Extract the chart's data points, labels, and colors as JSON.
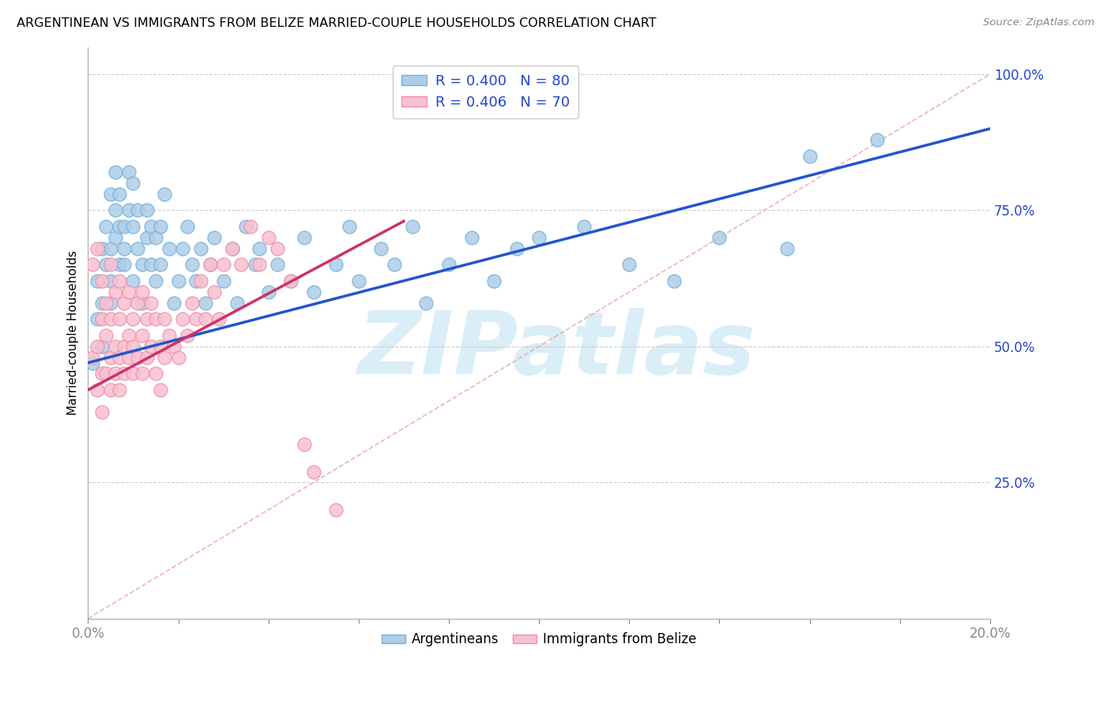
{
  "title": "ARGENTINEAN VS IMMIGRANTS FROM BELIZE MARRIED-COUPLE HOUSEHOLDS CORRELATION CHART",
  "source": "Source: ZipAtlas.com",
  "ylabel": "Married-couple Households",
  "ytick_labels": [
    "100.0%",
    "75.0%",
    "50.0%",
    "25.0%"
  ],
  "ytick_values": [
    1.0,
    0.75,
    0.5,
    0.25
  ],
  "legend_blue_r": "R = 0.400",
  "legend_blue_n": "N = 80",
  "legend_pink_r": "R = 0.406",
  "legend_pink_n": "N = 70",
  "legend_blue_label": "Argentineans",
  "legend_pink_label": "Immigrants from Belize",
  "blue_edge": "#7ab3d9",
  "blue_fill": "#aecde8",
  "pink_edge": "#f092aa",
  "pink_fill": "#f8c0d0",
  "line_blue": "#2255cc",
  "line_pink": "#cc3366",
  "line_diagonal_color": "#e8a0b0",
  "watermark": "ZIPatlas",
  "watermark_color": "#daeef8",
  "blue_scatter_x": [
    0.001,
    0.002,
    0.002,
    0.003,
    0.003,
    0.003,
    0.004,
    0.004,
    0.005,
    0.005,
    0.005,
    0.005,
    0.006,
    0.006,
    0.006,
    0.007,
    0.007,
    0.007,
    0.008,
    0.008,
    0.008,
    0.009,
    0.009,
    0.01,
    0.01,
    0.01,
    0.011,
    0.011,
    0.012,
    0.012,
    0.013,
    0.013,
    0.014,
    0.014,
    0.015,
    0.015,
    0.016,
    0.016,
    0.017,
    0.018,
    0.019,
    0.02,
    0.021,
    0.022,
    0.023,
    0.024,
    0.025,
    0.026,
    0.027,
    0.028,
    0.03,
    0.032,
    0.033,
    0.035,
    0.037,
    0.038,
    0.04,
    0.042,
    0.045,
    0.048,
    0.05,
    0.055,
    0.058,
    0.06,
    0.065,
    0.068,
    0.072,
    0.075,
    0.08,
    0.085,
    0.09,
    0.095,
    0.1,
    0.11,
    0.12,
    0.13,
    0.14,
    0.155,
    0.16,
    0.175
  ],
  "blue_scatter_y": [
    0.47,
    0.55,
    0.62,
    0.5,
    0.58,
    0.68,
    0.72,
    0.65,
    0.58,
    0.78,
    0.68,
    0.62,
    0.75,
    0.82,
    0.7,
    0.72,
    0.65,
    0.78,
    0.65,
    0.72,
    0.68,
    0.75,
    0.82,
    0.62,
    0.72,
    0.8,
    0.68,
    0.75,
    0.58,
    0.65,
    0.7,
    0.75,
    0.65,
    0.72,
    0.62,
    0.7,
    0.72,
    0.65,
    0.78,
    0.68,
    0.58,
    0.62,
    0.68,
    0.72,
    0.65,
    0.62,
    0.68,
    0.58,
    0.65,
    0.7,
    0.62,
    0.68,
    0.58,
    0.72,
    0.65,
    0.68,
    0.6,
    0.65,
    0.62,
    0.7,
    0.6,
    0.65,
    0.72,
    0.62,
    0.68,
    0.65,
    0.72,
    0.58,
    0.65,
    0.7,
    0.62,
    0.68,
    0.7,
    0.72,
    0.65,
    0.62,
    0.7,
    0.68,
    0.85,
    0.88
  ],
  "pink_scatter_x": [
    0.001,
    0.001,
    0.002,
    0.002,
    0.002,
    0.003,
    0.003,
    0.003,
    0.003,
    0.004,
    0.004,
    0.004,
    0.005,
    0.005,
    0.005,
    0.005,
    0.006,
    0.006,
    0.006,
    0.007,
    0.007,
    0.007,
    0.007,
    0.008,
    0.008,
    0.008,
    0.009,
    0.009,
    0.009,
    0.01,
    0.01,
    0.01,
    0.011,
    0.011,
    0.012,
    0.012,
    0.012,
    0.013,
    0.013,
    0.014,
    0.014,
    0.015,
    0.015,
    0.016,
    0.016,
    0.017,
    0.017,
    0.018,
    0.019,
    0.02,
    0.021,
    0.022,
    0.023,
    0.024,
    0.025,
    0.026,
    0.027,
    0.028,
    0.029,
    0.03,
    0.032,
    0.034,
    0.036,
    0.038,
    0.04,
    0.042,
    0.045,
    0.048,
    0.05,
    0.055
  ],
  "pink_scatter_y": [
    0.48,
    0.65,
    0.5,
    0.42,
    0.68,
    0.45,
    0.55,
    0.62,
    0.38,
    0.52,
    0.45,
    0.58,
    0.48,
    0.55,
    0.65,
    0.42,
    0.5,
    0.6,
    0.45,
    0.55,
    0.48,
    0.62,
    0.42,
    0.5,
    0.58,
    0.45,
    0.52,
    0.6,
    0.48,
    0.55,
    0.45,
    0.5,
    0.58,
    0.48,
    0.52,
    0.45,
    0.6,
    0.55,
    0.48,
    0.58,
    0.5,
    0.45,
    0.55,
    0.5,
    0.42,
    0.55,
    0.48,
    0.52,
    0.5,
    0.48,
    0.55,
    0.52,
    0.58,
    0.55,
    0.62,
    0.55,
    0.65,
    0.6,
    0.55,
    0.65,
    0.68,
    0.65,
    0.72,
    0.65,
    0.7,
    0.68,
    0.62,
    0.32,
    0.27,
    0.2
  ],
  "blue_line_x0": 0.0,
  "blue_line_y0": 0.47,
  "blue_line_x1": 0.2,
  "blue_line_y1": 0.9,
  "pink_line_x0": 0.0,
  "pink_line_y0": 0.42,
  "pink_line_x1": 0.07,
  "pink_line_y1": 0.73,
  "xmin": 0.0,
  "xmax": 0.2,
  "ymin": 0.0,
  "ymax": 1.05
}
